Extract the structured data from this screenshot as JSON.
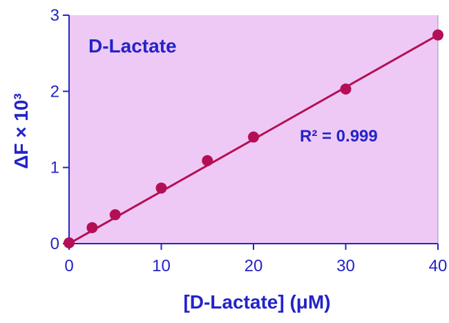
{
  "chart_data": {
    "type": "scatter",
    "title": "D-Lactate",
    "xlabel": "[D-Lactate] (μM)",
    "ylabel": "ΔF × 10³",
    "xlim": [
      0,
      40
    ],
    "ylim": [
      0,
      3
    ],
    "x_ticks": [
      "0",
      "10",
      "20",
      "30",
      "40"
    ],
    "y_ticks": [
      "0",
      "1",
      "2",
      "3"
    ],
    "annotation": "R² = 0.999",
    "colors": {
      "plot_background": "#efc9f5",
      "series": "#b40f55",
      "text": "#2323c8",
      "axis": "#2323c8"
    },
    "series": [
      {
        "x": [
          0,
          2.5,
          5,
          10,
          15,
          20,
          30,
          40
        ],
        "y": [
          0.01,
          0.21,
          0.38,
          0.73,
          1.09,
          1.4,
          2.03,
          2.74
        ]
      }
    ],
    "fit_line": {
      "x": [
        0,
        40
      ],
      "y": [
        0.0,
        2.74
      ]
    }
  }
}
